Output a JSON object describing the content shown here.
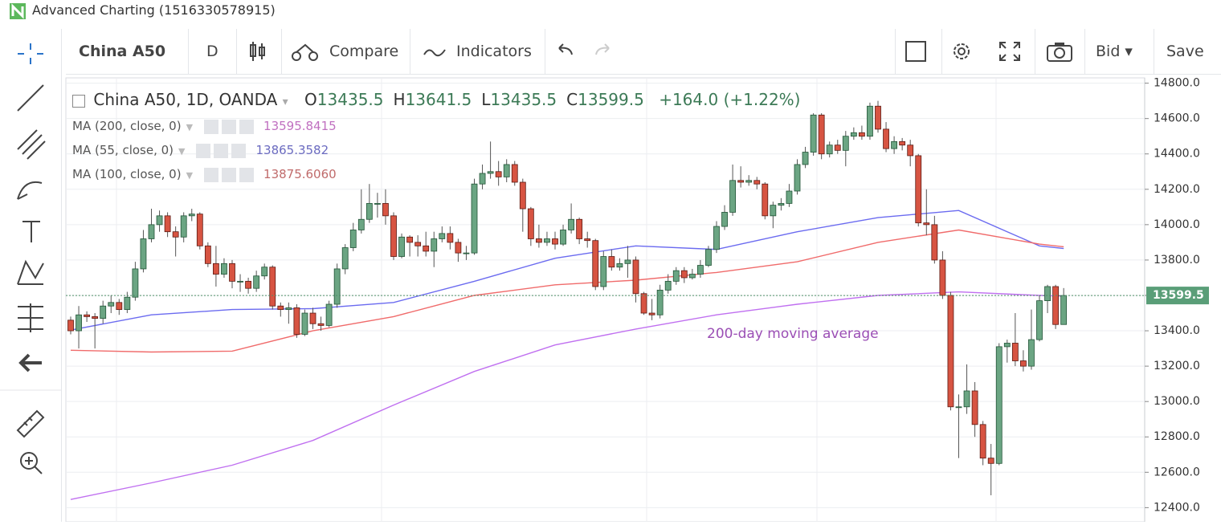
{
  "window_title": "Advanced Charting (1516330578915)",
  "toolbar": {
    "symbol": "China A50",
    "interval": "D",
    "compare": "Compare",
    "indicators": "Indicators",
    "price_type": "Bid",
    "save": "Save"
  },
  "chart_data": {
    "type": "candlestick",
    "title": "China A50, 1D, OANDA",
    "ohlc_header": [
      {
        "label": "O",
        "text": "13435.5"
      },
      {
        "label": "H",
        "text": "13641.5"
      },
      {
        "label": "L",
        "text": "13435.5"
      },
      {
        "label": "C",
        "text": "13599.5"
      }
    ],
    "change": "+164.0 (+1.22%)",
    "open": [
      13460,
      13400,
      13490,
      13480,
      13470,
      13540,
      13560,
      13520,
      13590,
      13750,
      13920,
      14000,
      14050,
      13960,
      13930,
      14050,
      14060,
      13880,
      13780,
      13720,
      13780,
      13680,
      13680,
      13640,
      13710,
      13760,
      13540,
      13520,
      13530,
      13380,
      13500,
      13440,
      13430,
      13550,
      13750,
      13870,
      13970,
      14030,
      14120,
      14120,
      14050,
      13820,
      13930,
      13900,
      13880,
      13850,
      13920,
      13950,
      13900,
      13840,
      13840,
      14230,
      14290,
      14300,
      14270,
      14340,
      14240,
      14090,
      13920,
      13900,
      13920,
      13890,
      13970,
      14030,
      13920,
      13910,
      13650,
      13820,
      13760,
      13780,
      13800,
      13610,
      13500,
      13490,
      13630,
      13680,
      13740,
      13700,
      13720,
      13770,
      13860,
      13990,
      14070,
      14250,
      14240,
      14250,
      14230,
      14050,
      14110,
      14120,
      14190,
      14340,
      14410,
      14620,
      14400,
      14450,
      14420,
      14500,
      14520,
      14500,
      14670,
      14540,
      14430,
      14470,
      14450,
      14390,
      14010,
      14000,
      13800,
      13600,
      12970,
      12970,
      13060,
      12870,
      12680,
      12650,
      13310,
      13330,
      13230,
      13200,
      13350,
      13570,
      13650,
      13435.5
    ],
    "high": [
      13480,
      13540,
      13510,
      13500,
      13570,
      13600,
      13580,
      13620,
      13790,
      13970,
      14090,
      14080,
      14070,
      13990,
      14070,
      14090,
      14070,
      13900,
      13880,
      13810,
      13800,
      13720,
      13700,
      13740,
      13780,
      13770,
      13560,
      13560,
      13550,
      13520,
      13530,
      13480,
      13570,
      13780,
      13890,
      14010,
      14200,
      14230,
      14180,
      14200,
      14070,
      13950,
      13940,
      13940,
      13960,
      13960,
      13990,
      13990,
      13920,
      13880,
      14260,
      14340,
      14470,
      14360,
      14370,
      14360,
      14260,
      14100,
      14000,
      13960,
      13960,
      14000,
      14120,
      14040,
      13960,
      13920,
      13850,
      13860,
      13810,
      13880,
      13820,
      13620,
      13580,
      13660,
      13720,
      13760,
      13760,
      13750,
      13800,
      13880,
      14020,
      14110,
      14340,
      14330,
      14280,
      14270,
      14240,
      14130,
      14150,
      14230,
      14370,
      14440,
      14630,
      14630,
      14470,
      14480,
      14530,
      14550,
      14560,
      14690,
      14700,
      14580,
      14500,
      14490,
      14480,
      14400,
      14200,
      14050,
      13850,
      13620,
      13040,
      13210,
      13110,
      12890,
      12760,
      13330,
      13350,
      13500,
      13290,
      13520,
      13600,
      13660,
      13660,
      13641.5
    ],
    "low": [
      13380,
      13300,
      13450,
      13300,
      13440,
      13500,
      13490,
      13500,
      13570,
      13730,
      13900,
      13960,
      13930,
      13820,
      13900,
      14020,
      13860,
      13760,
      13650,
      13700,
      13640,
      13620,
      13610,
      13620,
      13690,
      13520,
      13480,
      13440,
      13360,
      13370,
      13410,
      13400,
      13420,
      13530,
      13720,
      13850,
      13950,
      14010,
      14040,
      14000,
      13800,
      13810,
      13820,
      13820,
      13820,
      13760,
      13900,
      13860,
      13790,
      13800,
      13830,
      14200,
      14260,
      14220,
      14240,
      14220,
      13960,
      13880,
      13870,
      13880,
      13860,
      13880,
      13950,
      13890,
      13870,
      13630,
      13630,
      13740,
      13740,
      13700,
      13560,
      13490,
      13460,
      13470,
      13610,
      13660,
      13670,
      13690,
      13700,
      13760,
      13840,
      13970,
      14050,
      14210,
      14220,
      14200,
      14030,
      13980,
      14080,
      14100,
      14170,
      14320,
      14390,
      14370,
      14380,
      14400,
      14330,
      14480,
      14480,
      14480,
      14520,
      14410,
      14400,
      14420,
      14330,
      13990,
      13940,
      13780,
      13580,
      12950,
      12680,
      12930,
      12800,
      12640,
      12470,
      12640,
      13220,
      13200,
      13170,
      13180,
      13340,
      13500,
      13410,
      13435.5
    ],
    "close": [
      13400,
      13490,
      13480,
      13470,
      13540,
      13560,
      13520,
      13590,
      13750,
      13920,
      14000,
      14050,
      13960,
      13930,
      14050,
      14060,
      13880,
      13780,
      13720,
      13780,
      13680,
      13680,
      13640,
      13710,
      13760,
      13540,
      13520,
      13530,
      13380,
      13500,
      13440,
      13430,
      13550,
      13750,
      13870,
      13970,
      14030,
      14120,
      14120,
      14050,
      13820,
      13930,
      13900,
      13880,
      13850,
      13920,
      13950,
      13900,
      13840,
      13840,
      14230,
      14290,
      14300,
      14270,
      14340,
      14240,
      14090,
      13920,
      13900,
      13920,
      13890,
      13970,
      14030,
      13920,
      13910,
      13650,
      13820,
      13760,
      13780,
      13800,
      13610,
      13500,
      13490,
      13630,
      13680,
      13740,
      13700,
      13720,
      13770,
      13860,
      13990,
      14070,
      14250,
      14240,
      14250,
      14230,
      14050,
      14110,
      14120,
      14190,
      14340,
      14410,
      14620,
      14400,
      14450,
      14420,
      14500,
      14520,
      14500,
      14670,
      14540,
      14430,
      14470,
      14450,
      14390,
      14010,
      14000,
      13800,
      13600,
      12970,
      12970,
      13060,
      12870,
      12680,
      12650,
      13310,
      13330,
      13230,
      13200,
      13350,
      13570,
      13650,
      13435.5,
      13599.5
    ],
    "up_color": "#6ba583",
    "down_color": "#d75442",
    "series": [
      {
        "name": "MA (200, close, 0)",
        "legend_value": "13595.8415",
        "color": "#c070f0",
        "x": [
          0,
          10,
          20,
          30,
          40,
          50,
          60,
          70,
          80,
          90,
          100,
          110,
          120,
          123
        ],
        "values": [
          12446,
          12540,
          12640,
          12780,
          12980,
          13170,
          13320,
          13410,
          13490,
          13550,
          13600,
          13620,
          13600,
          13596
        ]
      },
      {
        "name": "MA (55, close, 0)",
        "legend_value": "13865.3582",
        "color": "#6b6bf0",
        "x": [
          0,
          10,
          20,
          30,
          40,
          50,
          60,
          70,
          80,
          90,
          100,
          110,
          120,
          123
        ],
        "values": [
          13404,
          13490,
          13520,
          13525,
          13560,
          13680,
          13810,
          13880,
          13860,
          13960,
          14040,
          14080,
          13880,
          13865
        ]
      },
      {
        "name": "MA (100, close, 0)",
        "legend_value": "13875.6060",
        "color": "#f06b6b",
        "x": [
          0,
          10,
          20,
          30,
          40,
          50,
          60,
          70,
          80,
          90,
          100,
          110,
          120,
          123
        ],
        "values": [
          13290,
          13280,
          13285,
          13400,
          13480,
          13600,
          13660,
          13686,
          13730,
          13790,
          13900,
          13970,
          13890,
          13875
        ]
      }
    ],
    "annotation": {
      "text": "200-day moving average",
      "color": "#9b4fb5"
    },
    "last_price": 13599.5,
    "last_price_label": "13599.5",
    "ylim": [
      12320,
      14830
    ],
    "yticks": [
      {
        "value": 12400,
        "label": "12400.0"
      },
      {
        "value": 12600,
        "label": "12600.0"
      },
      {
        "value": 12800,
        "label": "12800.0"
      },
      {
        "value": 13000,
        "label": "13000.0"
      },
      {
        "value": 13200,
        "label": "13200.0"
      },
      {
        "value": 13400,
        "label": "13400.0"
      },
      {
        "value": 13600,
        "label": "13600.0"
      },
      {
        "value": 13800,
        "label": "13800.0"
      },
      {
        "value": 14000,
        "label": "14000.0"
      },
      {
        "value": 14200,
        "label": "14200.0"
      },
      {
        "value": 14400,
        "label": "14400.0"
      },
      {
        "value": 14600,
        "label": "14600.0"
      },
      {
        "value": 14800,
        "label": "14800.0"
      }
    ],
    "grid": true
  }
}
